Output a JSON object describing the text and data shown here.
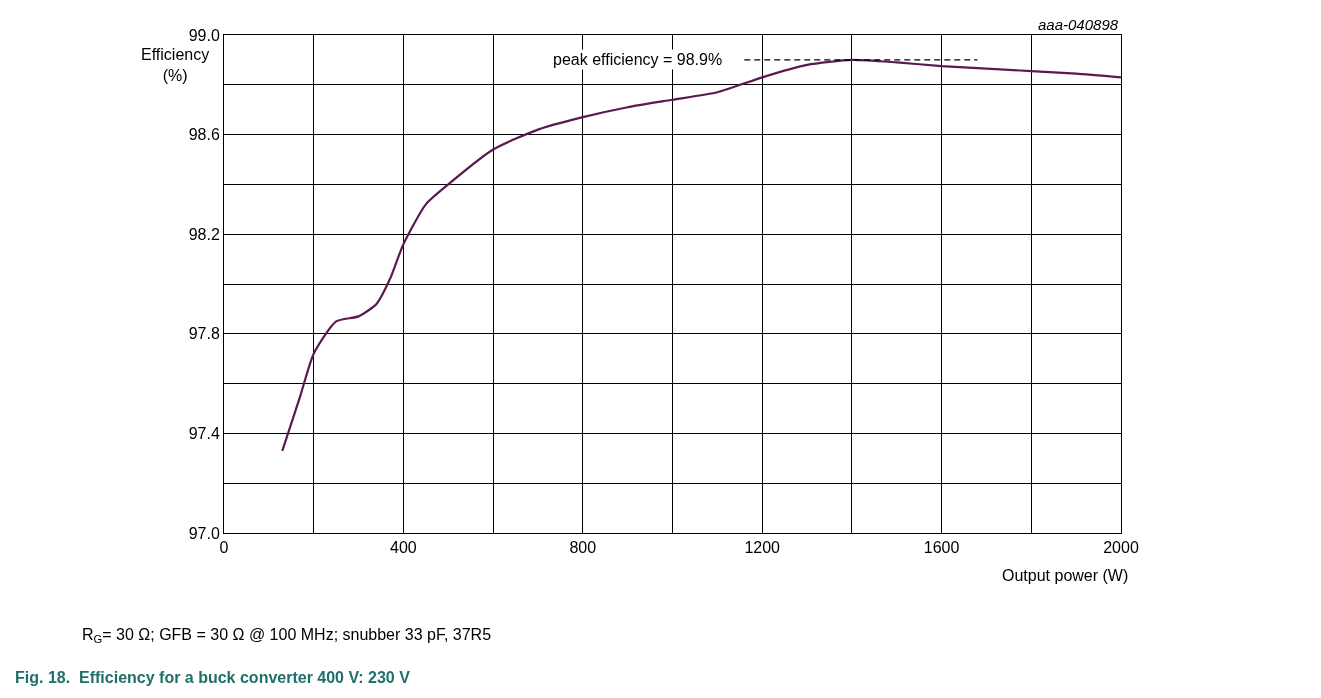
{
  "chart_data": {
    "type": "line",
    "title": "Fig. 18.  Efficiency for a buck converter 400 V: 230 V",
    "xlabel": "Output power (W)",
    "ylabel": "Efficiency\n(%)",
    "annotations": [
      "aaa-040898",
      "R$_{G}$= 30 Ω; GFB = 30 Ω @ 100 MHz; snubber 33 pF, 37R5",
      "peak efficiency = 98.9%"
    ],
    "series": [
      {
        "color": "#5b1a4f",
        "x": [
          130,
          170,
          200,
          250,
          300,
          340,
          370,
          400,
          450,
          500,
          600,
          700,
          800,
          900,
          1000,
          1100,
          1200,
          1300,
          1400,
          1500,
          1600,
          1700,
          1800,
          1900,
          2000
        ],
        "values": [
          97.33,
          97.55,
          97.72,
          97.85,
          97.87,
          97.92,
          98.02,
          98.16,
          98.32,
          98.4,
          98.54,
          98.62,
          98.67,
          98.71,
          98.74,
          98.77,
          98.83,
          98.88,
          98.9,
          98.89,
          98.875,
          98.865,
          98.855,
          98.845,
          98.83
        ]
      },
      {
        "color": "#000000",
        "line_style": "dashed",
        "x": [
          1160,
          1680
        ],
        "values": [
          98.9,
          98.9
        ]
      }
    ],
    "xlim": [
      0,
      2000
    ],
    "ylim": [
      97.0,
      99.0
    ],
    "xticks": [
      0,
      {
        "value": 200,
        "label": null
      },
      400,
      {
        "value": 600,
        "label": null
      },
      800,
      {
        "value": 1000,
        "label": null
      },
      1200,
      {
        "value": 1400,
        "label": null
      },
      1600,
      {
        "value": 1800,
        "label": null
      },
      2000
    ],
    "yticks": [
      {
        "value": 97.0,
        "label": "97.0"
      },
      {
        "value": 97.2,
        "label": null
      },
      97.4,
      {
        "value": 97.6,
        "label": null
      },
      97.8,
      {
        "value": 98.0,
        "label": null
      },
      98.2,
      {
        "value": 98.4,
        "label": null
      },
      98.6,
      {
        "value": 98.8,
        "label": null
      },
      {
        "value": 99.0,
        "label": "99.0"
      }
    ],
    "grid": true,
    "marker": "none",
    "line_style": "solid"
  }
}
